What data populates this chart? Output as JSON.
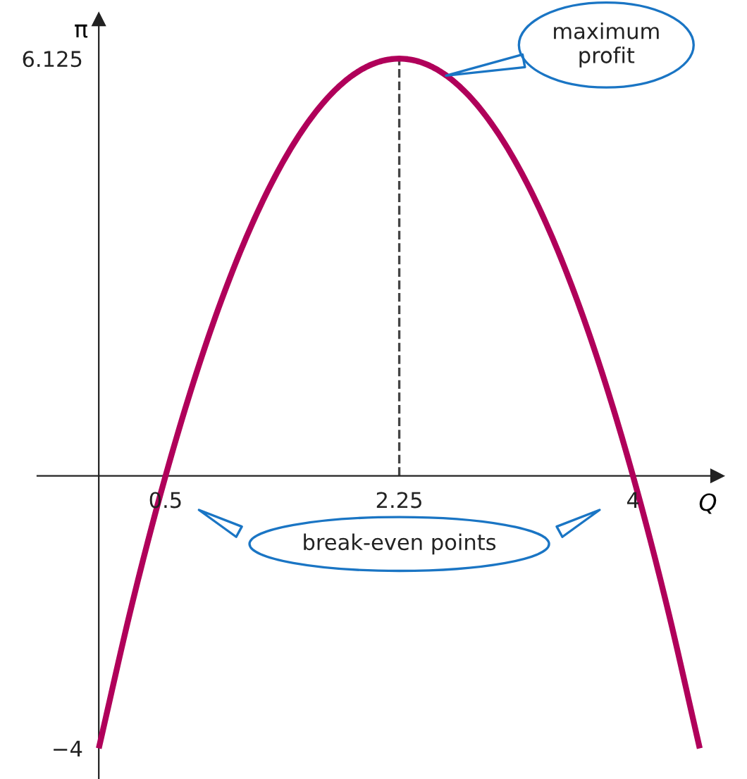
{
  "chart_data": {
    "type": "line",
    "xlabel": "Q",
    "ylabel": "π",
    "x": [
      0,
      0.25,
      0.5,
      0.75,
      1,
      1.25,
      1.5,
      1.75,
      2,
      2.25,
      2.5,
      2.75,
      3,
      3.25,
      3.5,
      3.75,
      4,
      4.25,
      4.5
    ],
    "series": [
      {
        "color": "#b0005a",
        "values": [
          -4,
          -1.875,
          0,
          1.625,
          3,
          4.125,
          5,
          5.625,
          6,
          6.125,
          6,
          5.625,
          5,
          4.125,
          3,
          1.625,
          0,
          -1.875,
          -4
        ]
      }
    ],
    "xlim": [
      -0.46,
      4.63
    ],
    "ylim": [
      -4.45,
      6.7
    ],
    "xticks": [
      0.5,
      2.25,
      4
    ],
    "yticks": [
      6.125,
      {
        "value": -4,
        "label": "−4"
      }
    ],
    "ref_lines": [
      {
        "axis": "x",
        "value": 2.25,
        "color": "#444444",
        "line_style": "dashed"
      }
    ],
    "annotations": [
      "maximum\nprofit",
      "break-even points"
    ],
    "grid": false,
    "legend": false,
    "marker": "none",
    "line_style": "solid"
  }
}
